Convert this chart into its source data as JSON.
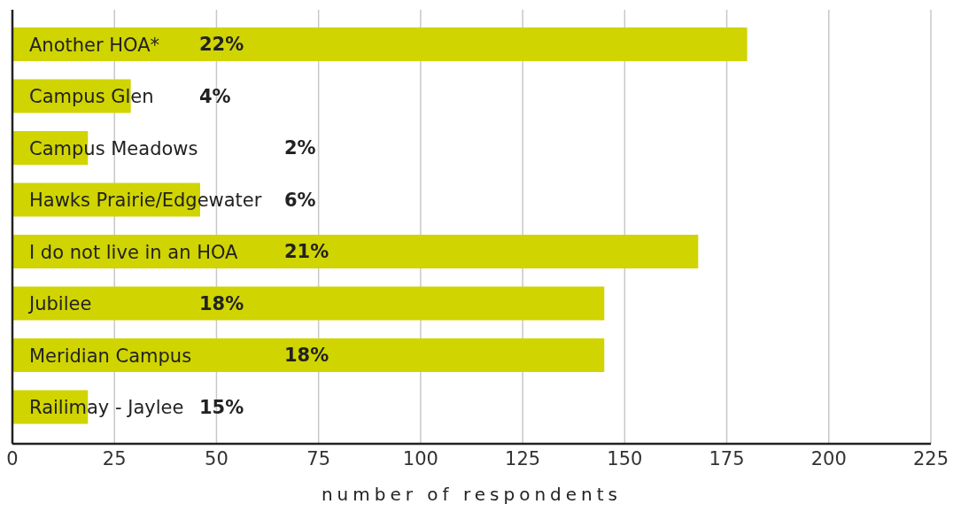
{
  "chart_data": {
    "type": "bar",
    "orientation": "horizontal",
    "xlabel": "number of respondents",
    "categories": [
      "Another HOA*",
      "Campus Glen",
      "Campus Meadows",
      "Hawks Prairie/Edgewater",
      "I do not live in an HOA",
      "Jubilee",
      "Meridian Campus",
      "Railimay - Jaylee"
    ],
    "values": [
      180,
      29,
      18.5,
      46,
      168,
      145,
      145,
      18.5
    ],
    "annotations": [
      "22%",
      "4%",
      "2%",
      "6%",
      "21%",
      "18%",
      "18%",
      "15%"
    ],
    "color": "#d0d400",
    "xlim": [
      0,
      225
    ],
    "xticks": [
      0,
      25,
      50,
      75,
      100,
      125,
      150,
      175,
      200,
      225
    ],
    "grid": "x"
  }
}
